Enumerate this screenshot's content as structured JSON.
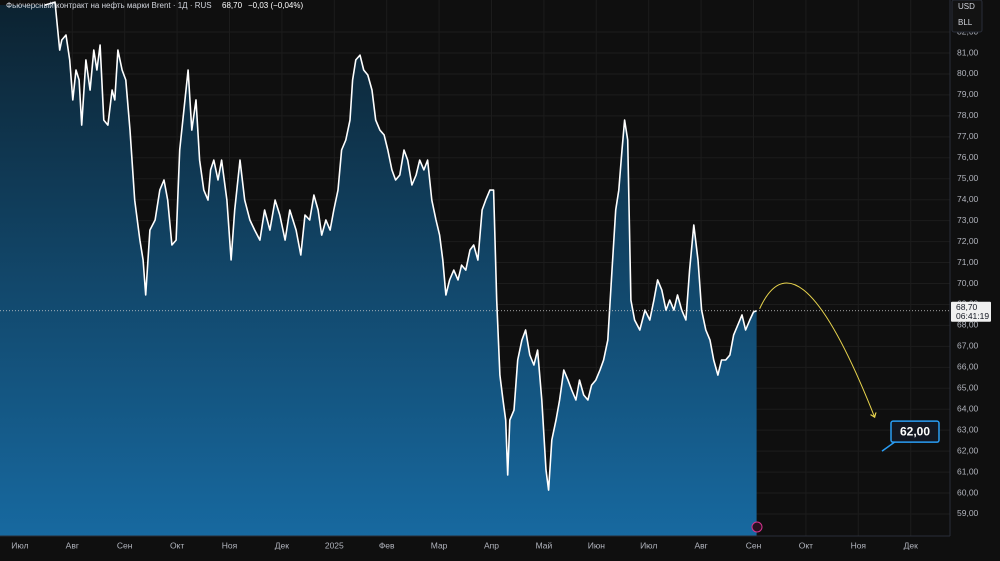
{
  "chart_data": {
    "type": "area",
    "title": "Фьючерсный контракт на нефть марки Brent · 1Д · RUS",
    "last_price": {
      "value": 68.7,
      "label": "68,70"
    },
    "change": "−0,03 (−0,04%)",
    "countdown": "06:41:19",
    "currency": "USD",
    "unit": "BLL",
    "annotation": {
      "value": 62,
      "label": "62,00"
    },
    "xlim": [
      -0.38,
      17.75
    ],
    "xticks": [
      {
        "value": 0,
        "label": "Июл"
      },
      {
        "value": 1,
        "label": "Авг"
      },
      {
        "value": 2,
        "label": "Сен"
      },
      {
        "value": 3,
        "label": "Окт"
      },
      {
        "value": 4,
        "label": "Ноя"
      },
      {
        "value": 5,
        "label": "Дек"
      },
      {
        "value": 6,
        "label": "2025"
      },
      {
        "value": 7,
        "label": "Фев"
      },
      {
        "value": 8,
        "label": "Мар"
      },
      {
        "value": 9,
        "label": "Апр"
      },
      {
        "value": 10,
        "label": "Май"
      },
      {
        "value": 11,
        "label": "Июн"
      },
      {
        "value": 12,
        "label": "Июл"
      },
      {
        "value": 13,
        "label": "Авг"
      },
      {
        "value": 14,
        "label": "Сен"
      },
      {
        "value": 15,
        "label": "Окт"
      },
      {
        "value": 16,
        "label": "Ноя"
      },
      {
        "value": 17,
        "label": "Дек"
      }
    ],
    "ylim": [
      57.95,
      83.53
    ],
    "yticks": [
      {
        "value": 59,
        "label": "59,00"
      },
      {
        "value": 60,
        "label": "60,00"
      },
      {
        "value": 61,
        "label": "61,00"
      },
      {
        "value": 62,
        "label": "62,00"
      },
      {
        "value": 63,
        "label": "63,00"
      },
      {
        "value": 64,
        "label": "64,00"
      },
      {
        "value": 65,
        "label": "65,00"
      },
      {
        "value": 66,
        "label": "66,00"
      },
      {
        "value": 67,
        "label": "67,00"
      },
      {
        "value": 68,
        "label": "68,00"
      },
      {
        "value": 69,
        "label": "69,00"
      },
      {
        "value": 70,
        "label": "70,00"
      },
      {
        "value": 71,
        "label": "71,00"
      },
      {
        "value": 72,
        "label": "72,00"
      },
      {
        "value": 73,
        "label": "73,00"
      },
      {
        "value": 74,
        "label": "74,00"
      },
      {
        "value": 75,
        "label": "75,00"
      },
      {
        "value": 76,
        "label": "76,00"
      },
      {
        "value": 77,
        "label": "77,00"
      },
      {
        "value": 78,
        "label": "78,00"
      },
      {
        "value": 79,
        "label": "79,00"
      },
      {
        "value": 80,
        "label": "80,00"
      },
      {
        "value": 81,
        "label": "81,00"
      },
      {
        "value": 82,
        "label": "82,00"
      }
    ],
    "grid": true,
    "series": [
      {
        "color": "#ffffff",
        "x": [
          0.48,
          0.67,
          0.76,
          0.8,
          0.88,
          0.95,
          1.01,
          1.07,
          1.13,
          1.18,
          1.26,
          1.34,
          1.41,
          1.47,
          1.53,
          1.6,
          1.68,
          1.76,
          1.81,
          1.87,
          1.95,
          2.02,
          2.1,
          2.19,
          2.29,
          2.35,
          2.4,
          2.48,
          2.58,
          2.67,
          2.75,
          2.82,
          2.9,
          2.98,
          3.05,
          3.13,
          3.21,
          3.28,
          3.36,
          3.43,
          3.51,
          3.59,
          3.64,
          3.7,
          3.78,
          3.85,
          3.95,
          4.03,
          4.1,
          4.2,
          4.29,
          4.39,
          4.48,
          4.58,
          4.67,
          4.77,
          4.87,
          4.96,
          5.06,
          5.15,
          5.27,
          5.36,
          5.44,
          5.53,
          5.61,
          5.69,
          5.76,
          5.84,
          5.92,
          5.99,
          6.07,
          6.14,
          6.22,
          6.3,
          6.35,
          6.41,
          6.49,
          6.56,
          6.64,
          6.72,
          6.79,
          6.87,
          6.95,
          7.02,
          7.1,
          7.17,
          7.25,
          7.33,
          7.4,
          7.48,
          7.56,
          7.63,
          7.71,
          7.78,
          7.86,
          7.94,
          8.01,
          8.07,
          8.13,
          8.2,
          8.28,
          8.36,
          8.43,
          8.51,
          8.59,
          8.66,
          8.74,
          8.82,
          8.89,
          8.97,
          9.04,
          9.1,
          9.16,
          9.22,
          9.27,
          9.31,
          9.35,
          9.43,
          9.5,
          9.58,
          9.65,
          9.73,
          9.81,
          9.88,
          9.96,
          10.04,
          10.09,
          10.15,
          10.23,
          10.3,
          10.38,
          10.46,
          10.53,
          10.61,
          10.68,
          10.76,
          10.84,
          10.91,
          10.99,
          11.07,
          11.14,
          11.22,
          11.3,
          11.37,
          11.43,
          11.49,
          11.54,
          11.6,
          11.66,
          11.73,
          11.83,
          11.93,
          12.02,
          12.1,
          12.17,
          12.25,
          12.33,
          12.4,
          12.48,
          12.55,
          12.63,
          12.71,
          12.78,
          12.86,
          12.94,
          13.01,
          13.09,
          13.17,
          13.24,
          13.32,
          13.39,
          13.47,
          13.55,
          13.62,
          13.7,
          13.78,
          13.85,
          13.93,
          14.0,
          14.06
        ],
        "values": [
          83.29,
          83.43,
          81.14,
          81.62,
          81.86,
          80.67,
          78.76,
          80.19,
          79.71,
          77.56,
          80.67,
          79.23,
          81.14,
          80.19,
          81.38,
          77.8,
          77.56,
          79.23,
          78.76,
          81.14,
          80.19,
          79.71,
          77.32,
          73.98,
          72.07,
          71.12,
          69.45,
          72.55,
          73.03,
          74.46,
          74.94,
          73.98,
          71.84,
          72.07,
          76.37,
          78.28,
          80.19,
          77.32,
          78.76,
          75.89,
          74.46,
          73.98,
          75.42,
          75.89,
          74.94,
          75.89,
          73.98,
          71.12,
          73.51,
          75.89,
          73.98,
          73.03,
          72.55,
          72.07,
          73.51,
          72.55,
          73.98,
          73.27,
          72.07,
          73.51,
          72.55,
          71.36,
          73.27,
          73.03,
          74.22,
          73.51,
          72.31,
          73.03,
          72.55,
          73.51,
          74.46,
          76.37,
          76.85,
          77.8,
          79.71,
          80.67,
          80.9,
          80.19,
          79.95,
          79.23,
          77.8,
          77.32,
          77.09,
          76.37,
          75.42,
          74.94,
          75.18,
          76.37,
          75.89,
          74.7,
          75.18,
          75.89,
          75.42,
          75.89,
          73.98,
          73.03,
          72.31,
          71.12,
          69.45,
          70.17,
          70.64,
          70.17,
          70.88,
          70.64,
          71.6,
          71.84,
          71.12,
          73.51,
          73.98,
          74.46,
          74.46,
          69.21,
          65.63,
          64.44,
          63.48,
          60.86,
          63.48,
          63.96,
          66.35,
          67.3,
          67.78,
          66.59,
          66.11,
          66.82,
          64.44,
          61.1,
          60.14,
          62.53,
          63.48,
          64.44,
          65.87,
          65.39,
          64.92,
          64.44,
          65.39,
          64.68,
          64.44,
          65.15,
          65.39,
          65.87,
          66.35,
          67.3,
          70.64,
          73.51,
          74.46,
          76.37,
          77.8,
          76.85,
          69.21,
          68.26,
          67.78,
          68.73,
          68.26,
          69.21,
          70.17,
          69.69,
          68.73,
          69.21,
          68.73,
          69.45,
          68.73,
          68.26,
          70.64,
          72.79,
          71.12,
          68.73,
          67.78,
          67.3,
          66.35,
          65.63,
          66.35,
          66.35,
          66.59,
          67.54,
          68.02,
          68.5,
          67.78,
          68.26,
          68.64,
          68.7
        ]
      }
    ]
  }
}
